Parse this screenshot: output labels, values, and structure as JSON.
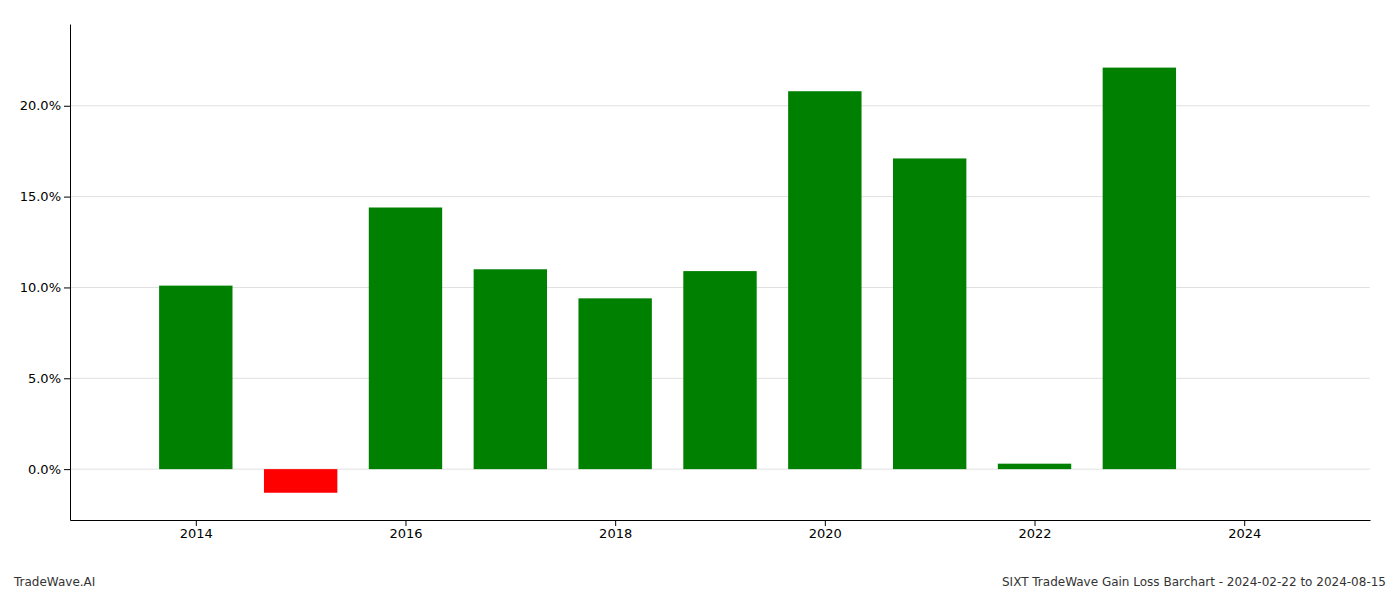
{
  "chart_data": {
    "type": "bar",
    "x": [
      2014,
      2015,
      2016,
      2017,
      2018,
      2019,
      2020,
      2021,
      2022,
      2023
    ],
    "values": [
      0.101,
      -0.013,
      0.144,
      0.11,
      0.094,
      0.109,
      0.208,
      0.171,
      0.003,
      0.221
    ],
    "colors": [
      "#008000",
      "#ff0000",
      "#008000",
      "#008000",
      "#008000",
      "#008000",
      "#008000",
      "#008000",
      "#008000",
      "#008000"
    ],
    "xlim": [
      2012.8,
      2025.2
    ],
    "xticks": [
      2014,
      2016,
      2018,
      2020,
      2022,
      2024
    ],
    "ylim": [
      -0.028,
      0.245
    ],
    "yticks": [
      {
        "value": 0.0,
        "label": "0.0%"
      },
      {
        "value": 0.05,
        "label": "5.0%"
      },
      {
        "value": 0.1,
        "label": "10.0%"
      },
      {
        "value": 0.15,
        "label": "15.0%"
      },
      {
        "value": 0.2,
        "label": "20.0%"
      }
    ],
    "grid": "y",
    "annotations": [
      "TradeWave.AI",
      "SIXT TradeWave Gain Loss Barchart - 2024-02-22 to 2024-08-15"
    ]
  }
}
